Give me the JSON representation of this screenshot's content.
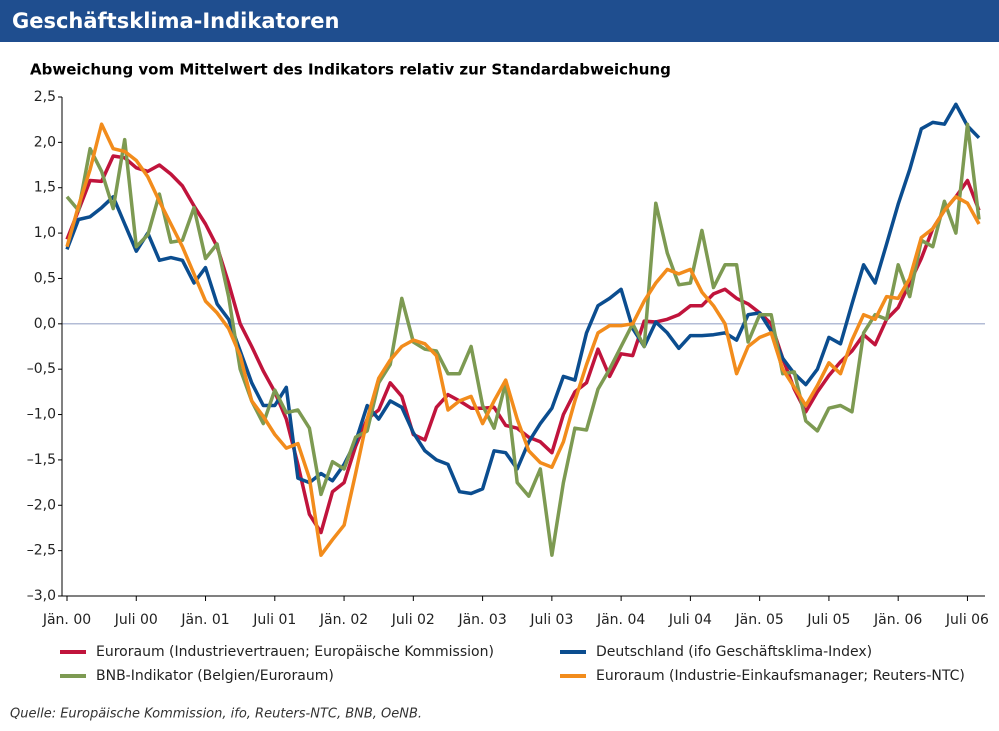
{
  "chart_data": {
    "type": "line",
    "title": "Geschäftsklima-Indikatoren",
    "subtitle": "Abweichung vom Mittelwert des Indikators relativ zur Standardabweichung",
    "source": "Quelle: Europäische Kommission, ifo, Reuters-NTC, BNB, OeNB.",
    "categories": [
      "Jän. 00",
      null,
      null,
      null,
      null,
      null,
      "Juli 00",
      null,
      null,
      null,
      null,
      null,
      "Jän. 01",
      null,
      null,
      null,
      null,
      null,
      "Juli 01",
      null,
      null,
      null,
      null,
      null,
      "Jän. 02",
      null,
      null,
      null,
      null,
      null,
      "Juli 02",
      null,
      null,
      null,
      null,
      null,
      "Jän. 03",
      null,
      null,
      null,
      null,
      null,
      "Juli 03",
      null,
      null,
      null,
      null,
      null,
      "Jän. 04",
      null,
      null,
      null,
      null,
      null,
      "Juli 04",
      null,
      null,
      null,
      null,
      null,
      "Jän. 05",
      null,
      null,
      null,
      null,
      null,
      "Juli 05",
      null,
      null,
      null,
      null,
      null,
      "Jän. 06",
      null,
      null,
      null,
      null,
      null,
      "Juli 06",
      null
    ],
    "series": [
      {
        "name": "Euroraum (Industrievertrauen; Europäische Kommission)",
        "color": "#c0143c",
        "values": [
          0.93,
          1.25,
          1.58,
          1.57,
          1.85,
          1.83,
          1.72,
          1.68,
          1.75,
          1.65,
          1.52,
          1.3,
          1.1,
          0.85,
          0.45,
          0.0,
          -0.25,
          -0.52,
          -0.75,
          -1.05,
          -1.55,
          -2.1,
          -2.3,
          -1.85,
          -1.75,
          -1.35,
          -1.05,
          -0.95,
          -0.65,
          -0.8,
          -1.22,
          -1.28,
          -0.92,
          -0.78,
          -0.85,
          -0.93,
          -0.93,
          -0.92,
          -1.12,
          -1.15,
          -1.25,
          -1.3,
          -1.42,
          -1.0,
          -0.75,
          -0.65,
          -0.28,
          -0.58,
          -0.33,
          -0.35,
          0.03,
          0.02,
          0.05,
          0.1,
          0.2,
          0.2,
          0.33,
          0.38,
          0.28,
          0.22,
          0.12,
          0.0,
          -0.38,
          -0.72,
          -0.97,
          -0.75,
          -0.57,
          -0.42,
          -0.3,
          -0.12,
          -0.23,
          0.05,
          0.18,
          0.45,
          0.72,
          1.05,
          1.25,
          1.4,
          1.58,
          1.25
        ]
      },
      {
        "name": "Deutschland (ifo Geschäftsklima-Index)",
        "color": "#0b4d8f",
        "values": [
          0.82,
          1.15,
          1.18,
          1.28,
          1.4,
          1.1,
          0.8,
          1.0,
          0.7,
          0.73,
          0.7,
          0.45,
          0.62,
          0.22,
          0.05,
          -0.3,
          -0.65,
          -0.9,
          -0.9,
          -0.7,
          -1.7,
          -1.75,
          -1.65,
          -1.73,
          -1.55,
          -1.3,
          -0.9,
          -1.05,
          -0.85,
          -0.92,
          -1.2,
          -1.4,
          -1.5,
          -1.55,
          -1.85,
          -1.87,
          -1.82,
          -1.4,
          -1.42,
          -1.6,
          -1.3,
          -1.1,
          -0.93,
          -0.58,
          -0.62,
          -0.1,
          0.2,
          0.28,
          0.38,
          -0.05,
          -0.25,
          0.02,
          -0.1,
          -0.27,
          -0.13,
          -0.13,
          -0.12,
          -0.1,
          -0.18,
          0.1,
          0.12,
          -0.08,
          -0.38,
          -0.55,
          -0.67,
          -0.5,
          -0.15,
          -0.22,
          0.22,
          0.65,
          0.45,
          0.88,
          1.32,
          1.7,
          2.15,
          2.22,
          2.2,
          2.42,
          2.18,
          2.05
        ]
      },
      {
        "name": "BNB-Indikator (Belgien/Euroraum)",
        "color": "#7d9a52",
        "values": [
          1.4,
          1.25,
          1.93,
          1.68,
          1.27,
          2.03,
          0.85,
          0.98,
          1.43,
          0.9,
          0.92,
          1.28,
          0.72,
          0.88,
          0.3,
          -0.5,
          -0.85,
          -1.1,
          -0.73,
          -0.98,
          -0.95,
          -1.15,
          -1.88,
          -1.52,
          -1.6,
          -1.25,
          -1.18,
          -0.65,
          -0.45,
          0.28,
          -0.2,
          -0.28,
          -0.3,
          -0.55,
          -0.55,
          -0.25,
          -0.9,
          -1.15,
          -0.65,
          -1.75,
          -1.9,
          -1.6,
          -2.55,
          -1.75,
          -1.15,
          -1.17,
          -0.72,
          -0.5,
          -0.25,
          0.0,
          -0.25,
          1.33,
          0.78,
          0.43,
          0.45,
          1.03,
          0.4,
          0.65,
          0.65,
          -0.2,
          0.1,
          0.1,
          -0.55,
          -0.53,
          -1.07,
          -1.18,
          -0.93,
          -0.9,
          -0.97,
          -0.1,
          0.1,
          0.05,
          0.65,
          0.3,
          0.92,
          0.85,
          1.35,
          1.0,
          2.2,
          1.15
        ]
      },
      {
        "name": "Euroraum (Industrie-Einkaufsmanager; Reuters-NTC)",
        "color": "#f28c1c",
        "values": [
          0.85,
          1.3,
          1.7,
          2.2,
          1.93,
          1.9,
          1.8,
          1.62,
          1.35,
          1.1,
          0.85,
          0.55,
          0.25,
          0.12,
          -0.05,
          -0.35,
          -0.85,
          -1.02,
          -1.22,
          -1.37,
          -1.32,
          -1.7,
          -2.55,
          -2.38,
          -2.22,
          -1.65,
          -1.05,
          -0.6,
          -0.4,
          -0.25,
          -0.18,
          -0.22,
          -0.35,
          -0.95,
          -0.85,
          -0.8,
          -1.1,
          -0.85,
          -0.62,
          -1.05,
          -1.4,
          -1.53,
          -1.58,
          -1.3,
          -0.85,
          -0.45,
          -0.1,
          -0.02,
          -0.02,
          0.0,
          0.25,
          0.45,
          0.6,
          0.55,
          0.6,
          0.35,
          0.2,
          0.0,
          -0.55,
          -0.25,
          -0.15,
          -0.1,
          -0.5,
          -0.7,
          -0.9,
          -0.68,
          -0.43,
          -0.55,
          -0.18,
          0.1,
          0.05,
          0.3,
          0.28,
          0.5,
          0.95,
          1.05,
          1.25,
          1.4,
          1.33,
          1.1
        ]
      }
    ],
    "ylim": [
      -3.0,
      2.5
    ],
    "yticks": [
      {
        "value": 2.5,
        "label": "2,5"
      },
      {
        "value": 2.0,
        "label": "2,0"
      },
      {
        "value": 1.5,
        "label": "1,5"
      },
      {
        "value": 1.0,
        "label": "1,0"
      },
      {
        "value": 0.5,
        "label": "0,5"
      },
      {
        "value": 0.0,
        "label": "0,0"
      },
      {
        "value": -0.5,
        "label": "–0,5"
      },
      {
        "value": -1.0,
        "label": "–1,0"
      },
      {
        "value": -1.5,
        "label": "–1,5"
      },
      {
        "value": -2.0,
        "label": "–2,0"
      },
      {
        "value": -2.5,
        "label": "–2,5"
      },
      {
        "value": -3.0,
        "label": "–3,0"
      }
    ],
    "grid": false,
    "zero_line_color": "#9aa6c8",
    "legend": "bottom"
  }
}
